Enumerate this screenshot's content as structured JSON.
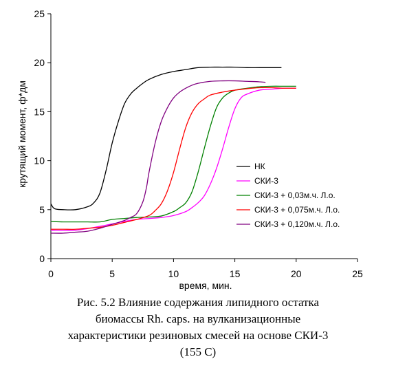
{
  "chart_data": {
    "type": "line",
    "title": "",
    "xlabel": "время, мин.",
    "ylabel": "крутящий момент, ф*дм",
    "xlim": [
      0,
      25
    ],
    "ylim": [
      0,
      25
    ],
    "xticks": [
      0,
      5,
      10,
      15,
      20,
      25
    ],
    "yticks": [
      0,
      5,
      10,
      15,
      20,
      25
    ],
    "grid": false,
    "legend_position": "right",
    "series": [
      {
        "name": "НК",
        "color": "#000000",
        "x": [
          0,
          0.3,
          1,
          2,
          3,
          3.5,
          4,
          4.5,
          5,
          5.5,
          6,
          6.5,
          7,
          7.5,
          8,
          9,
          10,
          11,
          12,
          13,
          14,
          15,
          16,
          17,
          18,
          18.8
        ],
        "y": [
          5.6,
          5.1,
          5.0,
          5.0,
          5.3,
          5.7,
          6.7,
          9.0,
          11.8,
          14.0,
          15.8,
          16.8,
          17.4,
          17.9,
          18.3,
          18.8,
          19.1,
          19.3,
          19.5,
          19.55,
          19.55,
          19.55,
          19.5,
          19.5,
          19.5,
          19.5
        ]
      },
      {
        "name": "СКИ-3",
        "color": "#ff00ff",
        "x": [
          0,
          2,
          4,
          6,
          7,
          8,
          9,
          10,
          11,
          11.5,
          12,
          12.5,
          13,
          13.5,
          14,
          14.5,
          15,
          15.5,
          16,
          17,
          18,
          19,
          20
        ],
        "y": [
          2.9,
          2.9,
          3.3,
          3.8,
          4.0,
          4.1,
          4.2,
          4.4,
          4.8,
          5.2,
          5.7,
          6.4,
          7.6,
          9.2,
          11.2,
          13.4,
          15.3,
          16.4,
          16.8,
          17.2,
          17.3,
          17.4,
          17.4
        ]
      },
      {
        "name": "СКИ-3 + 0,03м.ч. Л.о.",
        "color": "#008000",
        "x": [
          0,
          1,
          2,
          3,
          4,
          5,
          6,
          7,
          8,
          9,
          10,
          10.5,
          11,
          11.5,
          12,
          12.5,
          13,
          13.5,
          14,
          14.5,
          15,
          16,
          17,
          18,
          19,
          20
        ],
        "y": [
          3.8,
          3.75,
          3.75,
          3.75,
          3.75,
          4.0,
          4.1,
          4.2,
          4.25,
          4.35,
          4.8,
          5.2,
          5.7,
          6.8,
          8.8,
          11.2,
          13.5,
          15.4,
          16.4,
          16.9,
          17.2,
          17.4,
          17.55,
          17.6,
          17.6,
          17.6
        ]
      },
      {
        "name": "СКИ-3 + 0,075м.ч. Л.о.",
        "color": "#ff0000",
        "x": [
          0,
          1,
          2,
          3,
          4,
          5,
          6,
          7,
          8,
          8.5,
          9,
          9.5,
          10,
          10.5,
          11,
          11.5,
          12,
          12.5,
          13,
          14,
          15,
          16,
          17,
          18,
          19,
          20
        ],
        "y": [
          3.0,
          3.0,
          3.0,
          3.1,
          3.2,
          3.4,
          3.7,
          4.0,
          4.4,
          4.9,
          5.6,
          6.9,
          8.8,
          11.2,
          13.4,
          14.9,
          15.8,
          16.3,
          16.7,
          17.0,
          17.2,
          17.35,
          17.45,
          17.45,
          17.4,
          17.4
        ]
      },
      {
        "name": "СКИ-3 + 0,120м.ч. Л.о.",
        "color": "#800080",
        "x": [
          0,
          1,
          2,
          3,
          4,
          5,
          6,
          6.5,
          7,
          7.5,
          7.8,
          8,
          8.5,
          9,
          9.5,
          10,
          10.5,
          11,
          11.5,
          12,
          13,
          14,
          15,
          16,
          17,
          17.5
        ],
        "y": [
          2.6,
          2.6,
          2.7,
          2.8,
          3.1,
          3.5,
          3.9,
          4.2,
          4.6,
          5.8,
          7.3,
          8.8,
          11.8,
          14.0,
          15.4,
          16.4,
          17.0,
          17.4,
          17.7,
          17.9,
          18.1,
          18.15,
          18.15,
          18.1,
          18.05,
          18.0
        ]
      }
    ]
  },
  "caption": {
    "line1": "Рис. 5.2 Влияние содержания липидного остатка",
    "line2": "биомассы Rh. caps. на вулканизационные",
    "line3": "характеристики резиновых смесей на основе СКИ-3",
    "line4": "(155 С)"
  }
}
